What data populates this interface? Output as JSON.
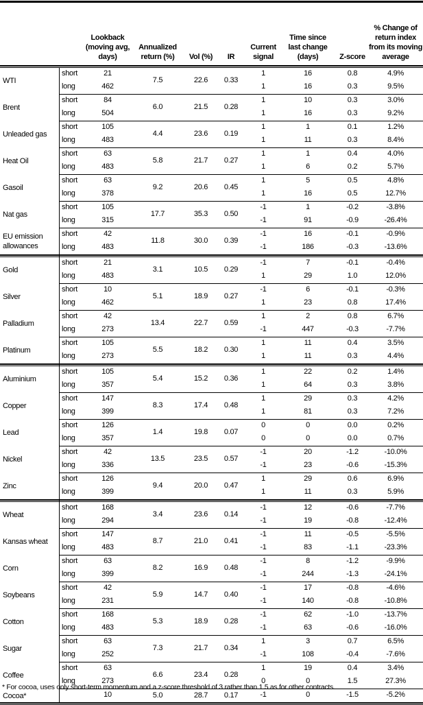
{
  "headers": {
    "lookback": "Lookback (moving avg, days)",
    "annualized": "Annualized return (%)",
    "vol": "Vol (%)",
    "ir": "IR",
    "signal": "Current signal",
    "time": "Time since last change (days)",
    "zscore": "Z-score",
    "pct": "% Change of return index from its moving average"
  },
  "groups": [
    [
      {
        "name": "WTI",
        "ann": "7.5",
        "vol": "22.6",
        "ir": "0.33",
        "rows": [
          {
            "term": "short",
            "lookback": "21",
            "signal": "1",
            "time": "16",
            "z": "0.8",
            "pct": "4.9%"
          },
          {
            "term": "long",
            "lookback": "462",
            "signal": "1",
            "time": "16",
            "z": "0.3",
            "pct": "9.5%"
          }
        ]
      },
      {
        "name": "Brent",
        "ann": "6.0",
        "vol": "21.5",
        "ir": "0.28",
        "rows": [
          {
            "term": "short",
            "lookback": "84",
            "signal": "1",
            "time": "10",
            "z": "0.3",
            "pct": "3.0%"
          },
          {
            "term": "long",
            "lookback": "504",
            "signal": "1",
            "time": "16",
            "z": "0.3",
            "pct": "9.2%"
          }
        ]
      },
      {
        "name": "Unleaded gas",
        "ann": "4.4",
        "vol": "23.6",
        "ir": "0.19",
        "rows": [
          {
            "term": "short",
            "lookback": "105",
            "signal": "1",
            "time": "1",
            "z": "0.1",
            "pct": "1.2%"
          },
          {
            "term": "long",
            "lookback": "483",
            "signal": "1",
            "time": "11",
            "z": "0.3",
            "pct": "8.4%"
          }
        ]
      },
      {
        "name": "Heat Oil",
        "ann": "5.8",
        "vol": "21.7",
        "ir": "0.27",
        "rows": [
          {
            "term": "short",
            "lookback": "63",
            "signal": "1",
            "time": "1",
            "z": "0.4",
            "pct": "4.0%"
          },
          {
            "term": "long",
            "lookback": "483",
            "signal": "1",
            "time": "6",
            "z": "0.2",
            "pct": "5.7%"
          }
        ]
      },
      {
        "name": "Gasoil",
        "ann": "9.2",
        "vol": "20.6",
        "ir": "0.45",
        "rows": [
          {
            "term": "short",
            "lookback": "63",
            "signal": "1",
            "time": "5",
            "z": "0.5",
            "pct": "4.8%"
          },
          {
            "term": "long",
            "lookback": "378",
            "signal": "1",
            "time": "16",
            "z": "0.5",
            "pct": "12.7%"
          }
        ]
      },
      {
        "name": "Nat gas",
        "ann": "17.7",
        "vol": "35.3",
        "ir": "0.50",
        "rows": [
          {
            "term": "short",
            "lookback": "105",
            "signal": "-1",
            "time": "1",
            "z": "-0.2",
            "pct": "-3.8%"
          },
          {
            "term": "long",
            "lookback": "315",
            "signal": "-1",
            "time": "91",
            "z": "-0.9",
            "pct": "-26.4%"
          }
        ]
      },
      {
        "name": "EU emission allowances",
        "ann": "11.8",
        "vol": "30.0",
        "ir": "0.39",
        "rows": [
          {
            "term": "short",
            "lookback": "42",
            "signal": "-1",
            "time": "16",
            "z": "-0.1",
            "pct": "-0.9%"
          },
          {
            "term": "long",
            "lookback": "483",
            "signal": "-1",
            "time": "186",
            "z": "-0.3",
            "pct": "-13.6%"
          }
        ]
      }
    ],
    [
      {
        "name": "Gold",
        "ann": "3.1",
        "vol": "10.5",
        "ir": "0.29",
        "rows": [
          {
            "term": "short",
            "lookback": "21",
            "signal": "-1",
            "time": "7",
            "z": "-0.1",
            "pct": "-0.4%"
          },
          {
            "term": "long",
            "lookback": "483",
            "signal": "1",
            "time": "29",
            "z": "1.0",
            "pct": "12.0%"
          }
        ]
      },
      {
        "name": "Silver",
        "ann": "5.1",
        "vol": "18.9",
        "ir": "0.27",
        "rows": [
          {
            "term": "short",
            "lookback": "10",
            "signal": "-1",
            "time": "6",
            "z": "-0.1",
            "pct": "-0.3%"
          },
          {
            "term": "long",
            "lookback": "462",
            "signal": "1",
            "time": "23",
            "z": "0.8",
            "pct": "17.4%"
          }
        ]
      },
      {
        "name": "Palladium",
        "ann": "13.4",
        "vol": "22.7",
        "ir": "0.59",
        "rows": [
          {
            "term": "short",
            "lookback": "42",
            "signal": "1",
            "time": "2",
            "z": "0.8",
            "pct": "6.7%"
          },
          {
            "term": "long",
            "lookback": "273",
            "signal": "-1",
            "time": "447",
            "z": "-0.3",
            "pct": "-7.7%"
          }
        ]
      },
      {
        "name": "Platinum",
        "ann": "5.5",
        "vol": "18.2",
        "ir": "0.30",
        "rows": [
          {
            "term": "short",
            "lookback": "105",
            "signal": "1",
            "time": "11",
            "z": "0.4",
            "pct": "3.5%"
          },
          {
            "term": "long",
            "lookback": "273",
            "signal": "1",
            "time": "11",
            "z": "0.3",
            "pct": "4.4%"
          }
        ]
      }
    ],
    [
      {
        "name": "Aluminium",
        "ann": "5.4",
        "vol": "15.2",
        "ir": "0.36",
        "rows": [
          {
            "term": "short",
            "lookback": "105",
            "signal": "1",
            "time": "22",
            "z": "0.2",
            "pct": "1.4%"
          },
          {
            "term": "long",
            "lookback": "357",
            "signal": "1",
            "time": "64",
            "z": "0.3",
            "pct": "3.8%"
          }
        ]
      },
      {
        "name": "Copper",
        "ann": "8.3",
        "vol": "17.4",
        "ir": "0.48",
        "rows": [
          {
            "term": "short",
            "lookback": "147",
            "signal": "1",
            "time": "29",
            "z": "0.3",
            "pct": "4.2%"
          },
          {
            "term": "long",
            "lookback": "399",
            "signal": "1",
            "time": "81",
            "z": "0.3",
            "pct": "7.2%"
          }
        ]
      },
      {
        "name": "Lead",
        "ann": "1.4",
        "vol": "19.8",
        "ir": "0.07",
        "rows": [
          {
            "term": "short",
            "lookback": "126",
            "signal": "0",
            "time": "0",
            "z": "0.0",
            "pct": "0.2%"
          },
          {
            "term": "long",
            "lookback": "357",
            "signal": "0",
            "time": "0",
            "z": "0.0",
            "pct": "0.7%"
          }
        ]
      },
      {
        "name": "Nickel",
        "ann": "13.5",
        "vol": "23.5",
        "ir": "0.57",
        "rows": [
          {
            "term": "short",
            "lookback": "42",
            "signal": "-1",
            "time": "20",
            "z": "-1.2",
            "pct": "-10.0%"
          },
          {
            "term": "long",
            "lookback": "336",
            "signal": "-1",
            "time": "23",
            "z": "-0.6",
            "pct": "-15.3%"
          }
        ]
      },
      {
        "name": "Zinc",
        "ann": "9.4",
        "vol": "20.0",
        "ir": "0.47",
        "rows": [
          {
            "term": "short",
            "lookback": "126",
            "signal": "1",
            "time": "29",
            "z": "0.6",
            "pct": "6.9%"
          },
          {
            "term": "long",
            "lookback": "399",
            "signal": "1",
            "time": "11",
            "z": "0.3",
            "pct": "5.9%"
          }
        ]
      }
    ],
    [
      {
        "name": "Wheat",
        "ann": "3.4",
        "vol": "23.6",
        "ir": "0.14",
        "rows": [
          {
            "term": "short",
            "lookback": "168",
            "signal": "-1",
            "time": "12",
            "z": "-0.6",
            "pct": "-7.7%"
          },
          {
            "term": "long",
            "lookback": "294",
            "signal": "-1",
            "time": "19",
            "z": "-0.8",
            "pct": "-12.4%"
          }
        ]
      },
      {
        "name": "Kansas wheat",
        "ann": "8.7",
        "vol": "21.0",
        "ir": "0.41",
        "rows": [
          {
            "term": "short",
            "lookback": "147",
            "signal": "-1",
            "time": "11",
            "z": "-0.5",
            "pct": "-5.5%"
          },
          {
            "term": "long",
            "lookback": "483",
            "signal": "-1",
            "time": "83",
            "z": "-1.1",
            "pct": "-23.3%"
          }
        ]
      },
      {
        "name": "Corn",
        "ann": "8.2",
        "vol": "16.9",
        "ir": "0.48",
        "rows": [
          {
            "term": "short",
            "lookback": "63",
            "signal": "-1",
            "time": "8",
            "z": "-1.2",
            "pct": "-9.9%"
          },
          {
            "term": "long",
            "lookback": "399",
            "signal": "-1",
            "time": "244",
            "z": "-1.3",
            "pct": "-24.1%"
          }
        ]
      },
      {
        "name": "Soybeans",
        "ann": "5.9",
        "vol": "14.7",
        "ir": "0.40",
        "rows": [
          {
            "term": "short",
            "lookback": "42",
            "signal": "-1",
            "time": "17",
            "z": "-0.8",
            "pct": "-4.6%"
          },
          {
            "term": "long",
            "lookback": "231",
            "signal": "-1",
            "time": "140",
            "z": "-0.8",
            "pct": "-10.8%"
          }
        ]
      },
      {
        "name": "Cotton",
        "ann": "5.3",
        "vol": "18.9",
        "ir": "0.28",
        "rows": [
          {
            "term": "short",
            "lookback": "168",
            "signal": "-1",
            "time": "62",
            "z": "-1.0",
            "pct": "-13.7%"
          },
          {
            "term": "long",
            "lookback": "483",
            "signal": "-1",
            "time": "63",
            "z": "-0.6",
            "pct": "-16.0%"
          }
        ]
      },
      {
        "name": "Sugar",
        "ann": "7.3",
        "vol": "21.7",
        "ir": "0.34",
        "rows": [
          {
            "term": "short",
            "lookback": "63",
            "signal": "1",
            "time": "3",
            "z": "0.7",
            "pct": "6.5%"
          },
          {
            "term": "long",
            "lookback": "252",
            "signal": "-1",
            "time": "108",
            "z": "-0.4",
            "pct": "-7.6%"
          }
        ]
      },
      {
        "name": "Coffee",
        "ann": "6.6",
        "vol": "23.4",
        "ir": "0.28",
        "rows": [
          {
            "term": "short",
            "lookback": "63",
            "signal": "1",
            "time": "19",
            "z": "0.4",
            "pct": "3.4%"
          },
          {
            "term": "long",
            "lookback": "273",
            "signal": "0",
            "time": "0",
            "z": "1.5",
            "pct": "27.3%"
          }
        ]
      },
      {
        "name": "Cocoa*",
        "ann": "5.0",
        "vol": "28.7",
        "ir": "0.17",
        "rows": [
          {
            "term": "",
            "lookback": "10",
            "signal": "-1",
            "time": "0",
            "z": "-1.5",
            "pct": "-5.2%"
          }
        ]
      }
    ]
  ],
  "footnote": "* For cocoa, uses only short-term momentum and a z-score threshold of 3 rather than 1.5 as for other contracts."
}
